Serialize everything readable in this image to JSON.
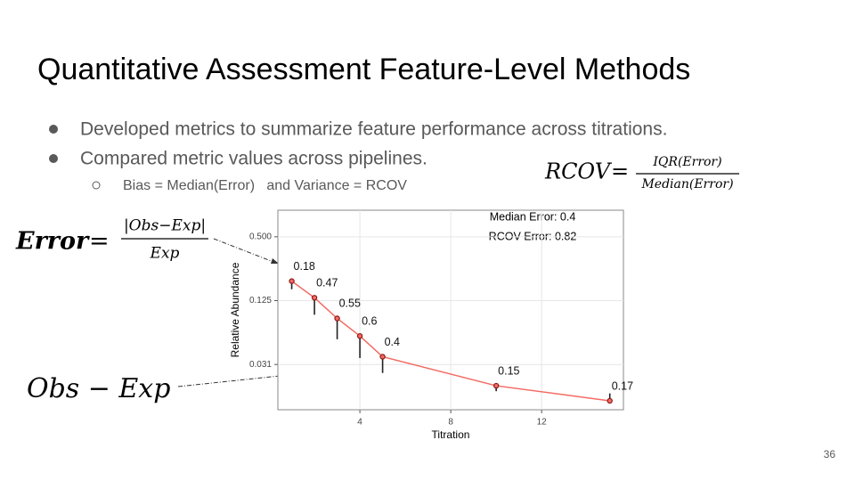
{
  "slide": {
    "title": "Quantitative Assessment Feature-Level Methods",
    "bullets": [
      "Developed metrics to summarize feature performance across titrations.",
      "Compared metric values across pipelines."
    ],
    "sub_bullet": "Bias = Median(Error)   and Variance = RCOV",
    "page_number": "36",
    "formulas": {
      "rcov": {
        "lhs": "RCOV",
        "equals": "=",
        "numerator": "IQR(Error)",
        "denominator": "Median(Error)"
      },
      "error": {
        "lhs": "Error",
        "equals": "=",
        "numerator": "|Obs−Exp|",
        "denominator": "Exp"
      },
      "difference": "Obs − Exp"
    }
  },
  "chart_data": {
    "type": "line",
    "x_label": "Titration",
    "y_label": "Relative Abundance",
    "annotations": [
      "Median Error: 0.4",
      "RCOV Error: 0.82"
    ],
    "x": [
      1,
      2,
      3,
      4,
      5,
      10,
      15
    ],
    "values": [
      0.191,
      0.133,
      0.085,
      0.058,
      0.037,
      0.0197,
      0.0142
    ],
    "expected": [
      0.16,
      0.092,
      0.054,
      0.036,
      0.026,
      0.0175,
      0.0167
    ],
    "errors": [
      0.18,
      0.47,
      0.55,
      0.6,
      0.4,
      0.15,
      0.17
    ],
    "color": "#f26b63",
    "point_color": "#8b1a1a",
    "segment_color": "#222222",
    "xlim": [
      0.39,
      15.6
    ],
    "xticks": [
      4,
      8,
      12
    ],
    "ylim": [
      0.0117,
      0.89
    ],
    "yticks": [
      {
        "value": 0.03125,
        "label": "0.031"
      },
      0.125,
      {
        "value": 0.5,
        "label": "0.500"
      }
    ],
    "log_y": true,
    "log_base": 2,
    "grid": true
  }
}
